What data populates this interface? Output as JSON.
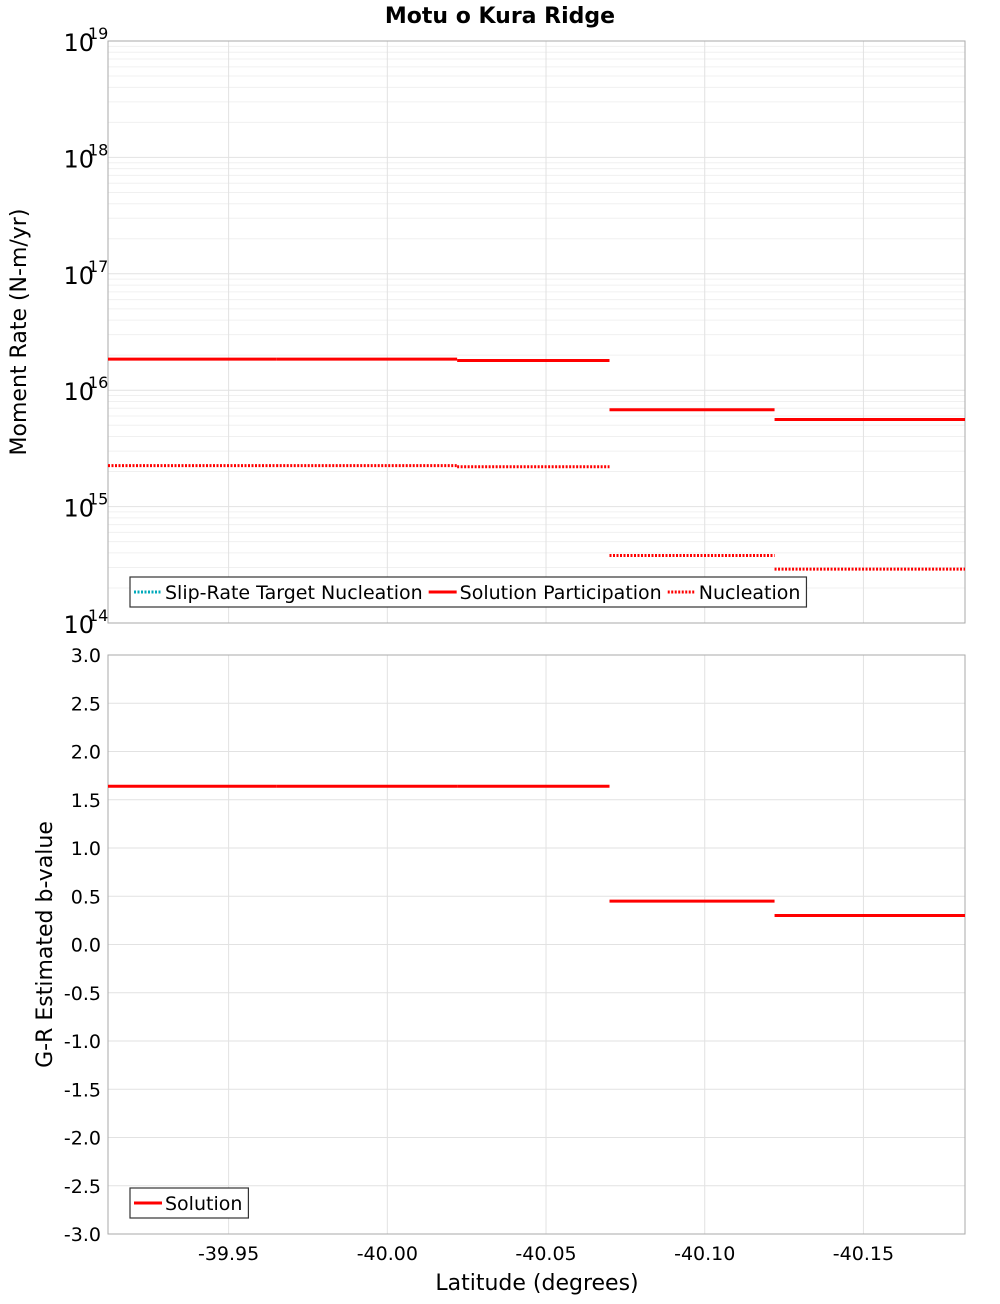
{
  "chart_data": {
    "title": "Motu o Kura Ridge",
    "xlabel": "Latitude (degrees)",
    "x_reversed": true,
    "xlim": [
      -39.912,
      -40.182
    ],
    "xticks": [
      "-39.95",
      "-40.00",
      "-40.05",
      "-40.10",
      "-40.15"
    ],
    "xtick_values": [
      -39.95,
      -40.0,
      -40.05,
      -40.1,
      -40.15
    ],
    "grid": true,
    "panels": [
      {
        "type": "line",
        "ylabel": "Moment Rate (N-m/yr)",
        "yscale": "log",
        "ylim": [
          100000000000000.0,
          1e+19
        ],
        "yticks": [
          {
            "value": 100000000000000.0,
            "base": "10",
            "exp": "14"
          },
          {
            "value": 1000000000000000.0,
            "base": "10",
            "exp": "15"
          },
          {
            "value": 1e+16,
            "base": "10",
            "exp": "16"
          },
          {
            "value": 1e+17,
            "base": "10",
            "exp": "17"
          },
          {
            "value": 1e+18,
            "base": "10",
            "exp": "18"
          },
          {
            "value": 1e+19,
            "base": "10",
            "exp": "19"
          }
        ],
        "legend_position": "bottom-left",
        "legend": [
          {
            "name": "Slip-Rate Target Nucleation",
            "color": "#00aabb",
            "dash": "dotted"
          },
          {
            "name": "Solution Participation",
            "color": "#ff0000",
            "dash": "solid"
          },
          {
            "name": "Nucleation",
            "color": "#ff0000",
            "dash": "dotted"
          }
        ],
        "series": [
          {
            "name": "Solution Participation",
            "color": "#ff0000",
            "dash": "solid",
            "segments": [
              {
                "x": [
                  -39.912,
                  -39.965
                ],
                "y": 1.85e+16
              },
              {
                "x": [
                  -39.965,
                  -40.022
                ],
                "y": 1.85e+16
              },
              {
                "x": [
                  -40.022,
                  -40.07
                ],
                "y": 1.8e+16
              },
              {
                "x": [
                  -40.07,
                  -40.122
                ],
                "y": 6800000000000000.0
              },
              {
                "x": [
                  -40.122,
                  -40.182
                ],
                "y": 5600000000000000.0
              }
            ]
          },
          {
            "name": "Nucleation",
            "color": "#ff0000",
            "dash": "dotted",
            "segments": [
              {
                "x": [
                  -39.912,
                  -39.965
                ],
                "y": 2250000000000000.0
              },
              {
                "x": [
                  -39.965,
                  -40.022
                ],
                "y": 2250000000000000.0
              },
              {
                "x": [
                  -40.022,
                  -40.07
                ],
                "y": 2200000000000000.0
              },
              {
                "x": [
                  -40.07,
                  -40.122
                ],
                "y": 380000000000000.0
              },
              {
                "x": [
                  -40.122,
                  -40.182
                ],
                "y": 290000000000000.0
              }
            ]
          }
        ]
      },
      {
        "type": "line",
        "ylabel": "G-R Estimated b-value",
        "yscale": "linear",
        "ylim": [
          -3.0,
          3.0
        ],
        "yticks": [
          "3.0",
          "2.5",
          "2.0",
          "1.5",
          "1.0",
          "0.5",
          "0.0",
          "-0.5",
          "-1.0",
          "-1.5",
          "-2.0",
          "-2.5",
          "-3.0"
        ],
        "ytick_values": [
          3.0,
          2.5,
          2.0,
          1.5,
          1.0,
          0.5,
          0.0,
          -0.5,
          -1.0,
          -1.5,
          -2.0,
          -2.5,
          -3.0
        ],
        "legend_position": "bottom-left",
        "legend": [
          {
            "name": "Solution",
            "color": "#ff0000",
            "dash": "solid"
          }
        ],
        "series": [
          {
            "name": "Solution",
            "color": "#ff0000",
            "dash": "solid",
            "segments": [
              {
                "x": [
                  -39.912,
                  -39.965
                ],
                "y": 1.64
              },
              {
                "x": [
                  -39.965,
                  -40.022
                ],
                "y": 1.64
              },
              {
                "x": [
                  -40.022,
                  -40.07
                ],
                "y": 1.64
              },
              {
                "x": [
                  -40.07,
                  -40.122
                ],
                "y": 0.45
              },
              {
                "x": [
                  -40.122,
                  -40.182
                ],
                "y": 0.3
              }
            ]
          }
        ]
      }
    ]
  }
}
